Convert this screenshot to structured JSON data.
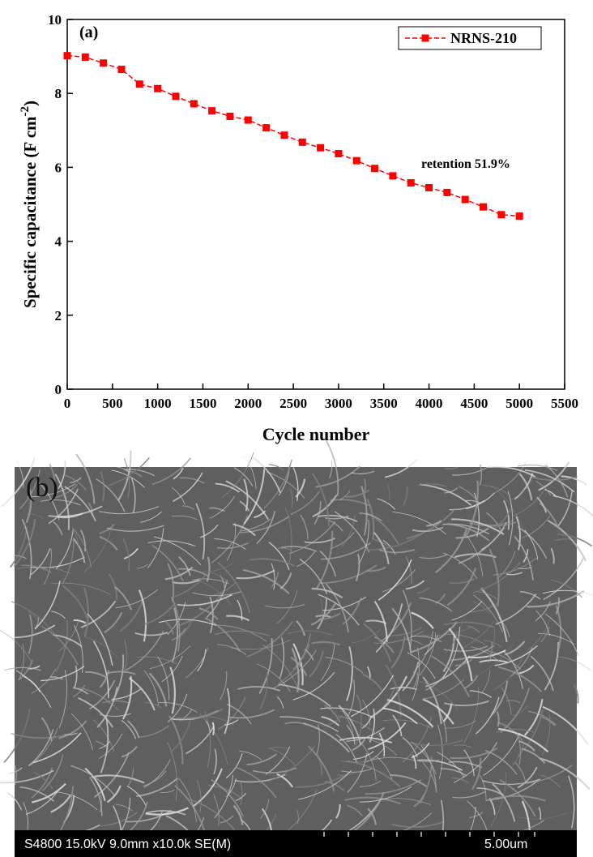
{
  "chart_data": {
    "type": "line",
    "panel": "(a)",
    "xlabel": "Cycle number",
    "ylabel": "Specific capacitance (F cm",
    "ylabel_sup": "-2",
    "ylabel_end": ")",
    "annotation": "retention 51.9%",
    "x": [
      0,
      200,
      400,
      600,
      800,
      1000,
      1200,
      1400,
      1600,
      1800,
      2000,
      2200,
      2400,
      2600,
      2800,
      3000,
      3200,
      3400,
      3600,
      3800,
      4000,
      4200,
      4400,
      4600,
      4800,
      5000
    ],
    "series": [
      {
        "name": "NRNS-210",
        "color": "#ff0000",
        "values": [
          9.02,
          8.98,
          8.82,
          8.65,
          8.25,
          8.13,
          7.92,
          7.72,
          7.53,
          7.38,
          7.28,
          7.07,
          6.87,
          6.68,
          6.53,
          6.37,
          6.18,
          5.97,
          5.77,
          5.58,
          5.45,
          5.32,
          5.13,
          4.93,
          4.72,
          4.68
        ]
      }
    ],
    "xlim": [
      0,
      5500
    ],
    "xticks": [
      0,
      500,
      1000,
      1500,
      2000,
      2500,
      3000,
      3500,
      4000,
      4500,
      5000,
      5500
    ],
    "ylim": [
      0,
      10
    ],
    "yticks": [
      0,
      2,
      4,
      6,
      8,
      10
    ],
    "legend": "top-right"
  },
  "image": {
    "panel": "(b)",
    "info": "S4800 15.0kV 9.0mm x10.0k SE(M)",
    "scale": "5.00um"
  }
}
